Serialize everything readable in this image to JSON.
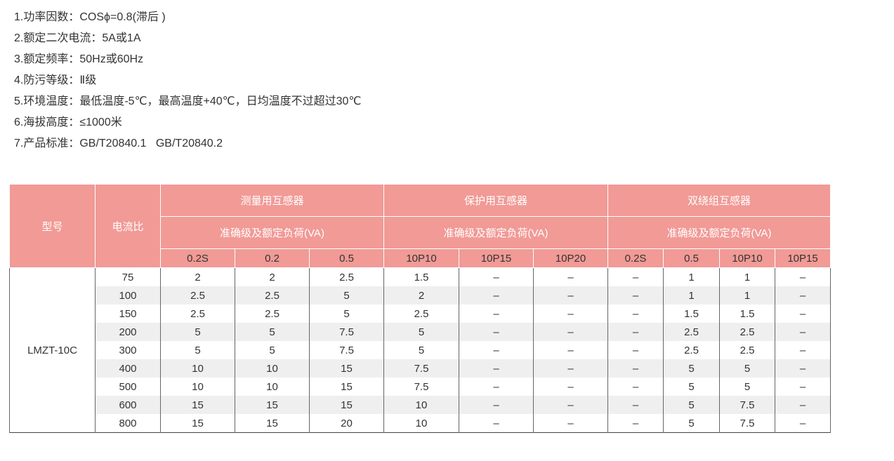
{
  "specs": [
    "1.功率因数：COSϕ=0.8(滞后 )",
    "2.额定二次电流：5A或1A",
    "3.额定频率：50Hz或60Hz",
    "4.防污等级：Ⅱ级",
    "5.环境温度：最低温度-5℃，最高温度+40℃，日均温度不过超过30℃",
    "6.海拔高度：≤1000米",
    "7.产品标准：GB/T20840.1   GB/T20840.2"
  ],
  "table": {
    "header_color": "#f19a96",
    "col_model": "型号",
    "col_ratio": "电流比",
    "groups": [
      {
        "title": "测量用互感器",
        "subtitle": "准确级及额定负荷(VA)",
        "classes": [
          "0.2S",
          "0.2",
          "0.5"
        ]
      },
      {
        "title": "保护用互感器",
        "subtitle": "准确级及额定负荷(VA)",
        "classes": [
          "10P10",
          "10P15",
          "10P20"
        ]
      },
      {
        "title": "双绕组互感器",
        "subtitle": "准确级及额定负荷(VA)",
        "classes": [
          "0.2S",
          "0.5",
          "10P10",
          "10P15"
        ]
      }
    ],
    "model": "LMZT-10C",
    "rows": [
      {
        "ratio": "75",
        "values": [
          "2",
          "2",
          "2.5",
          "1.5",
          "–",
          "–",
          "–",
          "1",
          "1",
          "–"
        ]
      },
      {
        "ratio": "100",
        "values": [
          "2.5",
          "2.5",
          "5",
          "2",
          "–",
          "–",
          "–",
          "1",
          "1",
          "–"
        ]
      },
      {
        "ratio": "150",
        "values": [
          "2.5",
          "2.5",
          "5",
          "2.5",
          "–",
          "–",
          "–",
          "1.5",
          "1.5",
          "–"
        ]
      },
      {
        "ratio": "200",
        "values": [
          "5",
          "5",
          "7.5",
          "5",
          "–",
          "–",
          "–",
          "2.5",
          "2.5",
          "–"
        ]
      },
      {
        "ratio": "300",
        "values": [
          "5",
          "5",
          "7.5",
          "5",
          "–",
          "–",
          "–",
          "2.5",
          "2.5",
          "–"
        ]
      },
      {
        "ratio": "400",
        "values": [
          "10",
          "10",
          "15",
          "7.5",
          "–",
          "–",
          "–",
          "5",
          "5",
          "–"
        ]
      },
      {
        "ratio": "500",
        "values": [
          "10",
          "10",
          "15",
          "7.5",
          "–",
          "–",
          "–",
          "5",
          "5",
          "–"
        ]
      },
      {
        "ratio": "600",
        "values": [
          "15",
          "15",
          "15",
          "10",
          "–",
          "–",
          "–",
          "5",
          "7.5",
          "–"
        ]
      },
      {
        "ratio": "800",
        "values": [
          "15",
          "15",
          "20",
          "10",
          "–",
          "–",
          "–",
          "5",
          "7.5",
          "–"
        ]
      }
    ]
  }
}
